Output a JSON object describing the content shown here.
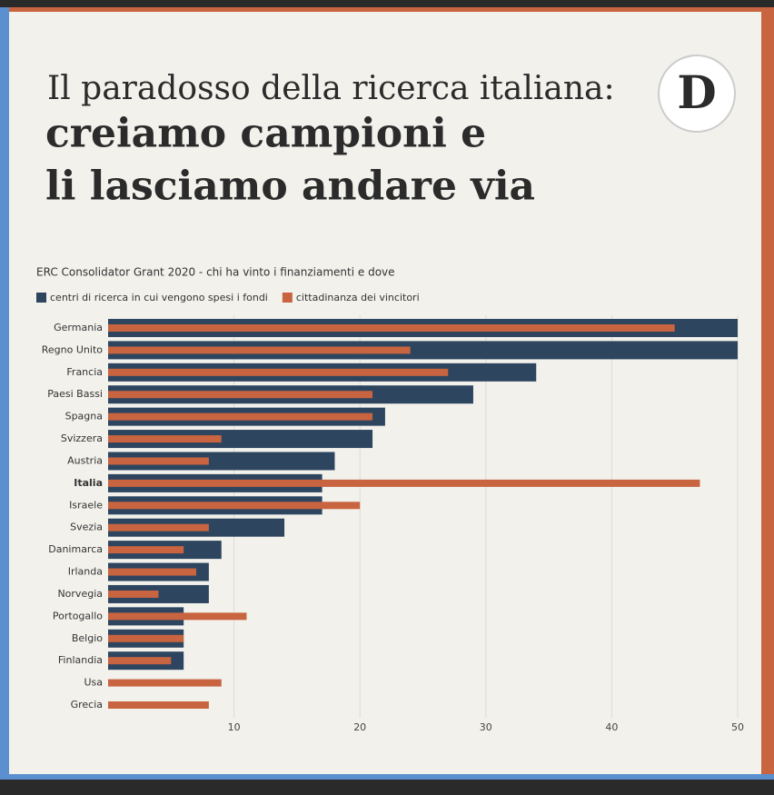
{
  "header": {
    "title_lines": [
      "Il paradosso della ricerca italiana:",
      "creiamo campioni e",
      "li lasciamo andare via"
    ],
    "logo": "D"
  },
  "chart_data": {
    "type": "hbar",
    "title": "ERC Consolidator Grant 2020 - chi ha vinto i finanziamenti e dove",
    "categories": [
      "Germania",
      "Regno Unito",
      "Francia",
      "Paesi Bassi",
      "Spagna",
      "Svizzera",
      "Austria",
      "Italia",
      "Israele",
      "Svezia",
      "Danimarca",
      "Irlanda",
      "Norvegia",
      "Portogallo",
      "Belgio",
      "Finlandia",
      "Usa",
      "Grecia"
    ],
    "highlight_category": "Italia",
    "series": [
      {
        "name": "centri di ricerca in cui vengono spesi i fondi",
        "color": "#2e4560",
        "values": [
          50,
          50,
          34,
          29,
          22,
          21,
          18,
          17,
          17,
          14,
          9,
          8,
          8,
          6,
          6,
          6,
          null,
          null
        ]
      },
      {
        "name": "cittadinanza dei vincitori",
        "color": "#c8643f",
        "values": [
          45,
          24,
          27,
          21,
          21,
          9,
          8,
          47,
          20,
          8,
          6,
          7,
          4,
          11,
          6,
          5,
          9,
          8
        ]
      }
    ],
    "xlim": [
      0,
      50
    ],
    "xticks": [
      10,
      20,
      30,
      40,
      50
    ],
    "grid": true
  }
}
